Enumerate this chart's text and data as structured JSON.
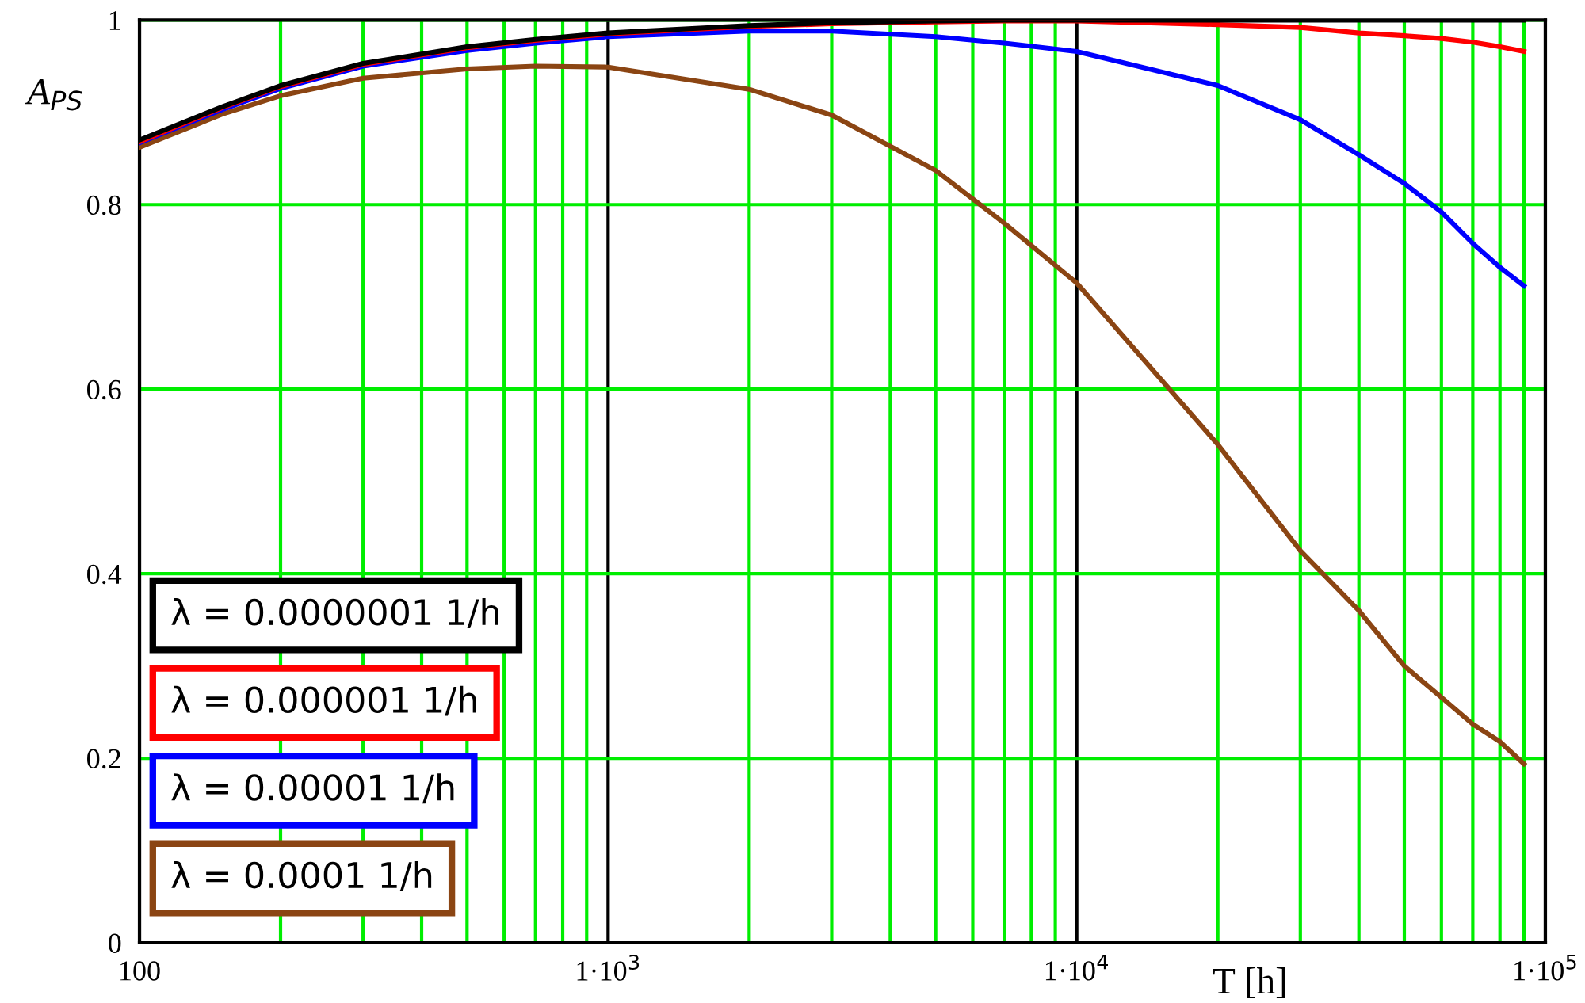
{
  "chart_data": {
    "type": "line",
    "xlabel": "T [h]",
    "ylabel": "A$_{PS}$",
    "log": "x",
    "x": [
      100,
      150,
      200,
      300,
      500,
      700,
      1000,
      2000,
      3000,
      5000,
      7000,
      10000,
      20000,
      30000,
      40000,
      50000,
      60000,
      70000,
      80000,
      90000
    ],
    "series": [
      {
        "name": "λ = 0.0000001 1/h",
        "color": "#000000",
        "values": [
          0.87,
          0.906,
          0.929,
          0.953,
          0.971,
          0.979,
          0.986,
          0.994,
          0.997,
          0.999,
          1.0,
          1.0,
          1.0,
          1.0,
          1.0,
          1.0,
          1.0,
          1.0,
          1.0,
          1.0
        ]
      },
      {
        "name": "λ = 0.000001 1/h",
        "color": "#ff0000",
        "values": [
          0.868,
          0.905,
          0.928,
          0.952,
          0.97,
          0.978,
          0.985,
          0.993,
          0.996,
          0.998,
          0.999,
          0.999,
          0.995,
          0.992,
          0.986,
          0.983,
          0.98,
          0.976,
          0.971,
          0.966
        ]
      },
      {
        "name": "λ = 0.00001 1/h",
        "color": "#0000ff",
        "values": [
          0.867,
          0.903,
          0.926,
          0.95,
          0.967,
          0.975,
          0.982,
          0.988,
          0.988,
          0.982,
          0.975,
          0.966,
          0.929,
          0.892,
          0.854,
          0.823,
          0.792,
          0.758,
          0.732,
          0.712
        ]
      },
      {
        "name": "λ = 0.0001 1/h",
        "color": "#8b4513",
        "values": [
          0.862,
          0.898,
          0.918,
          0.937,
          0.947,
          0.95,
          0.949,
          0.925,
          0.897,
          0.837,
          0.78,
          0.715,
          0.54,
          0.425,
          0.36,
          0.3,
          0.266,
          0.237,
          0.218,
          0.194
        ]
      }
    ],
    "xlim": [
      100,
      100000
    ],
    "xticks": [
      {
        "value": 100,
        "label": "100"
      },
      {
        "value": 1000,
        "label": "1·10$^{3}$"
      },
      {
        "value": 10000,
        "label": "1·10$^{4}$"
      },
      {
        "value": 100000,
        "label": "1·10$^{5}$"
      }
    ],
    "ylim": [
      0,
      1
    ],
    "yticks": [
      0,
      0.2,
      0.4,
      0.6,
      0.8,
      1
    ],
    "grid": true,
    "legend": "bottom left",
    "marker": "none",
    "line_style": "solid"
  }
}
